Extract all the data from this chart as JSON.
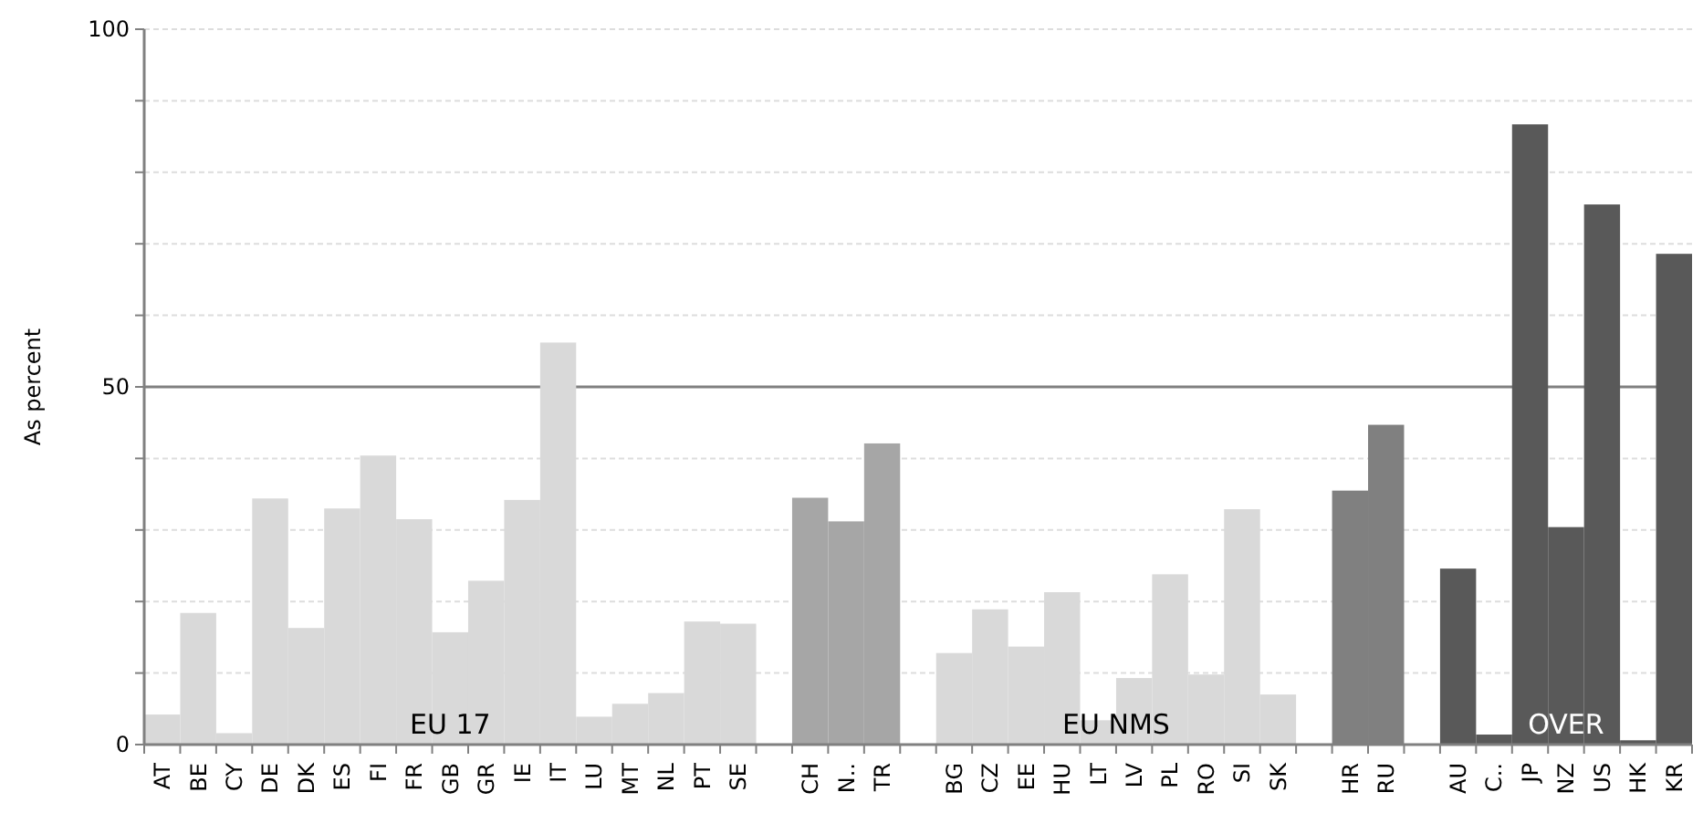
{
  "chart_data": {
    "type": "bar",
    "ylabel": "As percent",
    "categories": [
      "AT",
      "BE",
      "CY",
      "DE",
      "DK",
      "ES",
      "FI",
      "FR",
      "GB",
      "GR",
      "IE",
      "IT",
      "LU",
      "MT",
      "NL",
      "PT",
      "SE",
      null,
      "CH",
      "N..",
      "TR",
      null,
      "BG",
      "CZ",
      "EE",
      "HU",
      "LT",
      "LV",
      "PL",
      "RO",
      "SI",
      "SK",
      null,
      "HR",
      "RU",
      null,
      "AU",
      "C..",
      "JP",
      "NZ",
      "US",
      "HK",
      "KR"
    ],
    "values": [
      4.2,
      18.4,
      1.6,
      34.4,
      16.3,
      33.0,
      40.4,
      31.5,
      15.7,
      22.9,
      34.2,
      56.2,
      3.9,
      5.7,
      7.2,
      17.2,
      16.9,
      null,
      34.5,
      31.2,
      42.1,
      null,
      12.8,
      18.9,
      13.7,
      21.3,
      3.4,
      9.3,
      23.8,
      9.8,
      32.9,
      7.0,
      null,
      35.5,
      44.7,
      null,
      24.6,
      1.4,
      86.7,
      30.4,
      75.5,
      0.6,
      68.6
    ],
    "colors": [
      "#d9d9d9",
      "#d9d9d9",
      "#d9d9d9",
      "#d9d9d9",
      "#d9d9d9",
      "#d9d9d9",
      "#d9d9d9",
      "#d9d9d9",
      "#d9d9d9",
      "#d9d9d9",
      "#d9d9d9",
      "#d9d9d9",
      "#d9d9d9",
      "#d9d9d9",
      "#d9d9d9",
      "#d9d9d9",
      "#d9d9d9",
      null,
      "#a6a6a6",
      "#a6a6a6",
      "#a6a6a6",
      null,
      "#d9d9d9",
      "#d9d9d9",
      "#d9d9d9",
      "#d9d9d9",
      "#d9d9d9",
      "#d9d9d9",
      "#d9d9d9",
      "#d9d9d9",
      "#d9d9d9",
      "#d9d9d9",
      null,
      "#808080",
      "#808080",
      null,
      "#595959",
      "#595959",
      "#595959",
      "#595959",
      "#595959",
      "#595959",
      "#595959"
    ],
    "ylim": [
      0,
      100
    ],
    "yticks": [
      0,
      {
        "value": 10,
        "label": null
      },
      {
        "value": 20,
        "label": null
      },
      {
        "value": 30,
        "label": null
      },
      {
        "value": 40,
        "label": null
      },
      50,
      {
        "value": 60,
        "label": null
      },
      {
        "value": 70,
        "label": null
      },
      {
        "value": 80,
        "label": null
      },
      {
        "value": 90,
        "label": null
      },
      100
    ],
    "grid": true,
    "ref_lines": [
      {
        "axis": "y",
        "value": 50,
        "color": "#808080"
      }
    ],
    "annotations": [
      "EU 17",
      "EU NMS",
      "OVER"
    ]
  }
}
